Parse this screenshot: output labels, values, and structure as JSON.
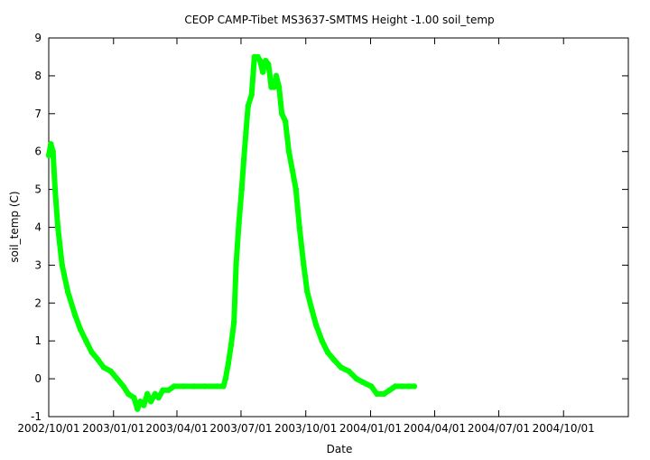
{
  "chart_data": {
    "type": "line",
    "title": "CEOP CAMP-Tibet MS3637-SMTMS Height -1.00 soil_temp",
    "xlabel": "Date",
    "ylabel": "soil_temp (C)",
    "xlim": [
      "2002-10-01",
      "2005-01-01"
    ],
    "ylim": [
      -1,
      9
    ],
    "x_ticks": [
      {
        "value": "2002-10-01",
        "label": "2002/10/01"
      },
      {
        "value": "2003-01-01",
        "label": "2003/01/01"
      },
      {
        "value": "2003-04-01",
        "label": "2003/04/01"
      },
      {
        "value": "2003-07-01",
        "label": "2003/07/01"
      },
      {
        "value": "2003-10-01",
        "label": "2003/10/01"
      },
      {
        "value": "2004-01-01",
        "label": "2004/01/01"
      },
      {
        "value": "2004-04-01",
        "label": "2004/04/01"
      },
      {
        "value": "2004-07-01",
        "label": "2004/07/01"
      },
      {
        "value": "2004-10-01",
        "label": "2004/10/01"
      }
    ],
    "y_ticks": [
      -1,
      0,
      1,
      2,
      3,
      4,
      5,
      6,
      7,
      8,
      9
    ],
    "grid": false,
    "legend": "none",
    "series": [
      {
        "color": "#00ff00",
        "points": [
          [
            "2002-10-01",
            5.9
          ],
          [
            "2002-10-04",
            6.2
          ],
          [
            "2002-10-07",
            6.0
          ],
          [
            "2002-10-10",
            5.0
          ],
          [
            "2002-10-14",
            4.0
          ],
          [
            "2002-10-20",
            3.0
          ],
          [
            "2002-10-28",
            2.3
          ],
          [
            "2002-11-07",
            1.7
          ],
          [
            "2002-11-15",
            1.3
          ],
          [
            "2002-11-23",
            1.0
          ],
          [
            "2002-12-01",
            0.7
          ],
          [
            "2002-12-10",
            0.5
          ],
          [
            "2002-12-18",
            0.3
          ],
          [
            "2002-12-28",
            0.2
          ],
          [
            "2003-01-06",
            0.0
          ],
          [
            "2003-01-15",
            -0.2
          ],
          [
            "2003-01-22",
            -0.4
          ],
          [
            "2003-01-30",
            -0.5
          ],
          [
            "2003-02-04",
            -0.8
          ],
          [
            "2003-02-08",
            -0.6
          ],
          [
            "2003-02-13",
            -0.7
          ],
          [
            "2003-02-18",
            -0.4
          ],
          [
            "2003-02-23",
            -0.6
          ],
          [
            "2003-03-01",
            -0.4
          ],
          [
            "2003-03-06",
            -0.5
          ],
          [
            "2003-03-12",
            -0.3
          ],
          [
            "2003-03-20",
            -0.3
          ],
          [
            "2003-03-28",
            -0.2
          ],
          [
            "2003-04-10",
            -0.2
          ],
          [
            "2003-04-25",
            -0.2
          ],
          [
            "2003-05-10",
            -0.2
          ],
          [
            "2003-05-28",
            -0.2
          ],
          [
            "2003-06-06",
            -0.2
          ],
          [
            "2003-06-09",
            0.0
          ],
          [
            "2003-06-13",
            0.4
          ],
          [
            "2003-06-17",
            0.9
          ],
          [
            "2003-06-21",
            1.5
          ],
          [
            "2003-06-24",
            3.0
          ],
          [
            "2003-06-28",
            4.1
          ],
          [
            "2003-07-02",
            5.0
          ],
          [
            "2003-07-05",
            5.8
          ],
          [
            "2003-07-08",
            6.5
          ],
          [
            "2003-07-11",
            7.2
          ],
          [
            "2003-07-16",
            7.5
          ],
          [
            "2003-07-20",
            8.5
          ],
          [
            "2003-07-25",
            8.5
          ],
          [
            "2003-07-28",
            8.4
          ],
          [
            "2003-08-01",
            8.1
          ],
          [
            "2003-08-05",
            8.4
          ],
          [
            "2003-08-09",
            8.3
          ],
          [
            "2003-08-13",
            7.7
          ],
          [
            "2003-08-17",
            7.7
          ],
          [
            "2003-08-20",
            8.0
          ],
          [
            "2003-08-24",
            7.7
          ],
          [
            "2003-08-28",
            7.0
          ],
          [
            "2003-09-02",
            6.8
          ],
          [
            "2003-09-07",
            6.0
          ],
          [
            "2003-09-12",
            5.5
          ],
          [
            "2003-09-17",
            5.0
          ],
          [
            "2003-09-22",
            4.0
          ],
          [
            "2003-09-28",
            3.0
          ],
          [
            "2003-10-03",
            2.3
          ],
          [
            "2003-10-10",
            1.8
          ],
          [
            "2003-10-16",
            1.4
          ],
          [
            "2003-10-24",
            1.0
          ],
          [
            "2003-11-01",
            0.7
          ],
          [
            "2003-11-10",
            0.5
          ],
          [
            "2003-11-20",
            0.3
          ],
          [
            "2003-12-01",
            0.2
          ],
          [
            "2003-12-12",
            0.0
          ],
          [
            "2003-12-22",
            -0.1
          ],
          [
            "2004-01-02",
            -0.2
          ],
          [
            "2004-01-10",
            -0.4
          ],
          [
            "2004-01-20",
            -0.4
          ],
          [
            "2004-01-28",
            -0.3
          ],
          [
            "2004-02-05",
            -0.2
          ],
          [
            "2004-02-15",
            -0.2
          ],
          [
            "2004-02-25",
            -0.2
          ],
          [
            "2004-03-03",
            -0.2
          ]
        ]
      }
    ]
  }
}
